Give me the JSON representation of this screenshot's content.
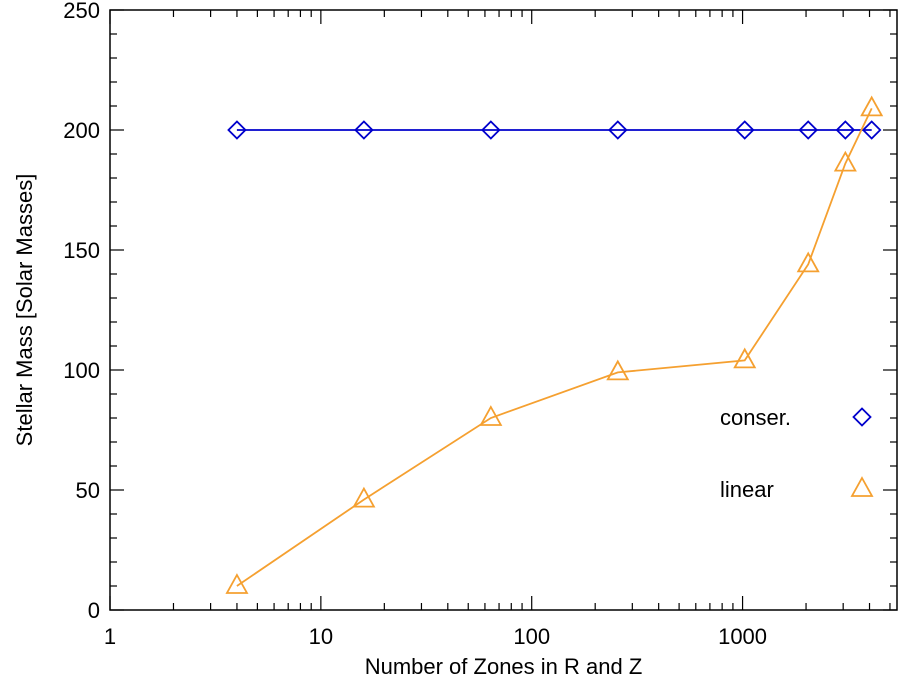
{
  "chart_data": {
    "type": "line",
    "title": "",
    "xlabel": "Number of Zones in R and Z",
    "ylabel": "Stellar Mass [Solar Masses]",
    "xscale": "log",
    "xlim": [
      1,
      5400
    ],
    "ylim": [
      0,
      250
    ],
    "xticks": [
      {
        "value": 1,
        "label": "1"
      },
      {
        "value": 10,
        "label": "10"
      },
      {
        "value": 100,
        "label": "100"
      },
      {
        "value": 1000,
        "label": "1000"
      }
    ],
    "yticks": [
      {
        "value": 0,
        "label": "0"
      },
      {
        "value": 50,
        "label": "50"
      },
      {
        "value": 100,
        "label": "100"
      },
      {
        "value": 150,
        "label": "150"
      },
      {
        "value": 200,
        "label": "200"
      },
      {
        "value": 250,
        "label": "250"
      }
    ],
    "grid": false,
    "legend_position": "lower-right",
    "series": [
      {
        "name": "conser.",
        "color": "#0000cc",
        "marker": "diamond",
        "x": [
          4,
          16,
          64,
          256,
          1024,
          2048,
          3072,
          4096
        ],
        "y": [
          200,
          200,
          200,
          200,
          200,
          200,
          200,
          200
        ]
      },
      {
        "name": "linear",
        "color": "#f5a030",
        "marker": "triangle",
        "x": [
          4,
          16,
          64,
          256,
          1024,
          2048,
          3072,
          4096
        ],
        "y": [
          10,
          46,
          80,
          99,
          104,
          144,
          186,
          209
        ]
      }
    ]
  }
}
